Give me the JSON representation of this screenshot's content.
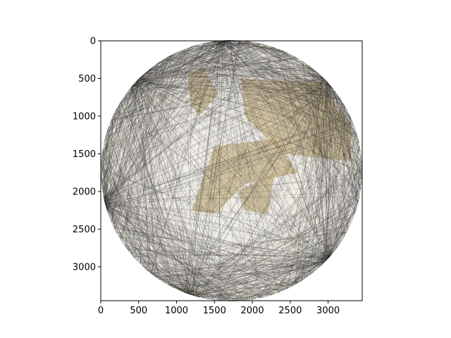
{
  "chart_data": {
    "type": "image",
    "title": "",
    "xlabel": "",
    "ylabel": "",
    "xlim": [
      0,
      3450
    ],
    "ylim": [
      3450,
      0
    ],
    "y_axis_inverted": true,
    "x_ticks": [
      0,
      500,
      1000,
      1500,
      2000,
      2500,
      3000
    ],
    "y_ticks": [
      0,
      500,
      1000,
      1500,
      2000,
      2500,
      3000
    ],
    "grid": false,
    "content": "string-art circle: many thin straight chords between points on a circle",
    "circle": {
      "center": [
        1725,
        1725
      ],
      "radius": 1725
    },
    "string_colors": [
      "#1e1e24",
      "#6b5a2a"
    ],
    "highlight_color": "#b9a36a",
    "background_inside": "#f2f0ea"
  }
}
